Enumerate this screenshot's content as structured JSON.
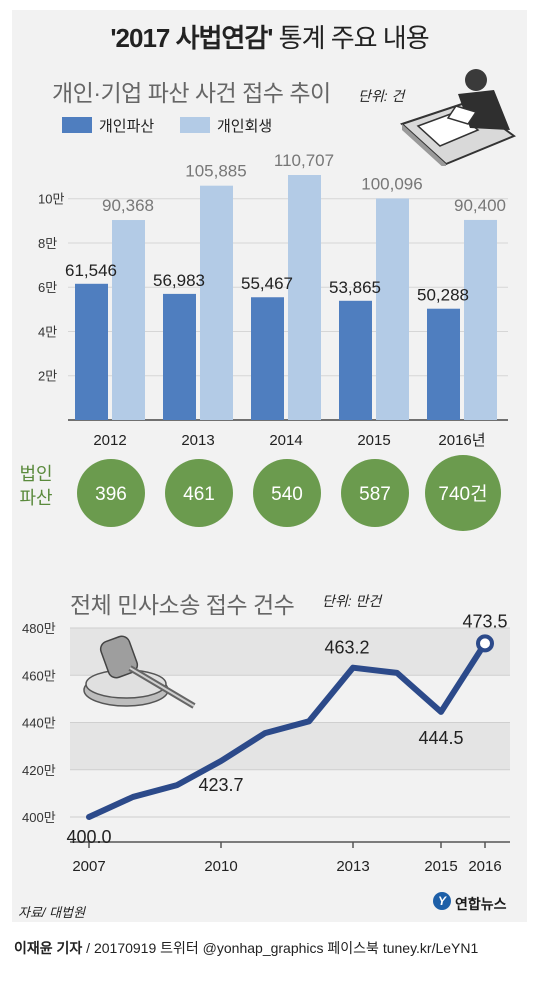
{
  "header": {
    "title_main": "'2017 사법연감'",
    "title_rest": " 통계 주요 내용"
  },
  "section1": {
    "subtitle": "개인·기업 파산 사건 접수 추이",
    "unit": "단위: 건",
    "legend": [
      "개인파산",
      "개인회생"
    ],
    "corp_label_1": "법인",
    "corp_label_2": "파산"
  },
  "section2": {
    "subtitle": "전체 민사소송 접수 건수",
    "unit": "단위: 만건"
  },
  "colors": {
    "dark_bar": "#4f7ebf",
    "light_bar": "#b3cbe6",
    "green": "#6b9b4e",
    "line": "#2c4a8a"
  },
  "chart_data": [
    {
      "type": "bar",
      "title": "개인·기업 파산 사건 접수 추이",
      "unit": "단위: 건",
      "categories": [
        "2012",
        "2013",
        "2014",
        "2015",
        "2016년"
      ],
      "series": [
        {
          "name": "개인파산",
          "values": [
            61546,
            56983,
            55467,
            53865,
            50288
          ]
        },
        {
          "name": "개인회생",
          "values": [
            90368,
            105885,
            110707,
            100096,
            90400
          ]
        }
      ],
      "data_labels": {
        "개인파산": [
          "61,546",
          "56,983",
          "55,467",
          "53,865",
          "50,288"
        ],
        "개인회생": [
          "90,368",
          "105,885",
          "110,707",
          "100,096",
          "90,400"
        ]
      },
      "yticks": [
        0,
        20000,
        40000,
        60000,
        80000,
        100000
      ],
      "ytick_labels": [
        "",
        "2만",
        "4만",
        "6만",
        "8만",
        "10만"
      ],
      "ylim": [
        0,
        110707
      ],
      "corporate_bankruptcy": {
        "label": "법인 파산",
        "values": [
          396,
          461,
          540,
          587,
          740
        ],
        "value_labels": [
          "396",
          "461",
          "540",
          "587",
          "740건"
        ]
      }
    },
    {
      "type": "line",
      "title": "전체 민사소송 접수 건수",
      "unit": "단위: 만건",
      "x": [
        2007,
        2008,
        2009,
        2010,
        2011,
        2012,
        2013,
        2014,
        2015,
        2016
      ],
      "y": [
        400.0,
        408.5,
        413.5,
        423.7,
        435.5,
        440.5,
        463.2,
        461.0,
        444.5,
        473.5
      ],
      "xtick_values": [
        2007,
        2010,
        2013,
        2015,
        2016
      ],
      "xtick_labels": [
        "2007",
        "2010",
        "2013",
        "2015",
        "2016"
      ],
      "yticks": [
        400,
        420,
        440,
        460,
        480
      ],
      "ytick_labels": [
        "400만",
        "420만",
        "440만",
        "460만",
        "480만"
      ],
      "ylim": [
        400,
        480
      ],
      "point_labels": [
        {
          "x": 2007,
          "label": "400.0"
        },
        {
          "x": 2010,
          "label": "423.7"
        },
        {
          "x": 2013,
          "label": "463.2"
        },
        {
          "x": 2015,
          "label": "444.5"
        },
        {
          "x": 2016,
          "label": "473.5"
        }
      ]
    }
  ],
  "source": "자료/ 대법원",
  "footer": {
    "author": "이재윤 기자",
    "rest": " / 20170919   트위터 @yonhap_graphics  페이스북 tuney.kr/LeYN1"
  },
  "logo": {
    "text": "연합뉴스",
    "icon": "yonhap-logo-icon"
  }
}
